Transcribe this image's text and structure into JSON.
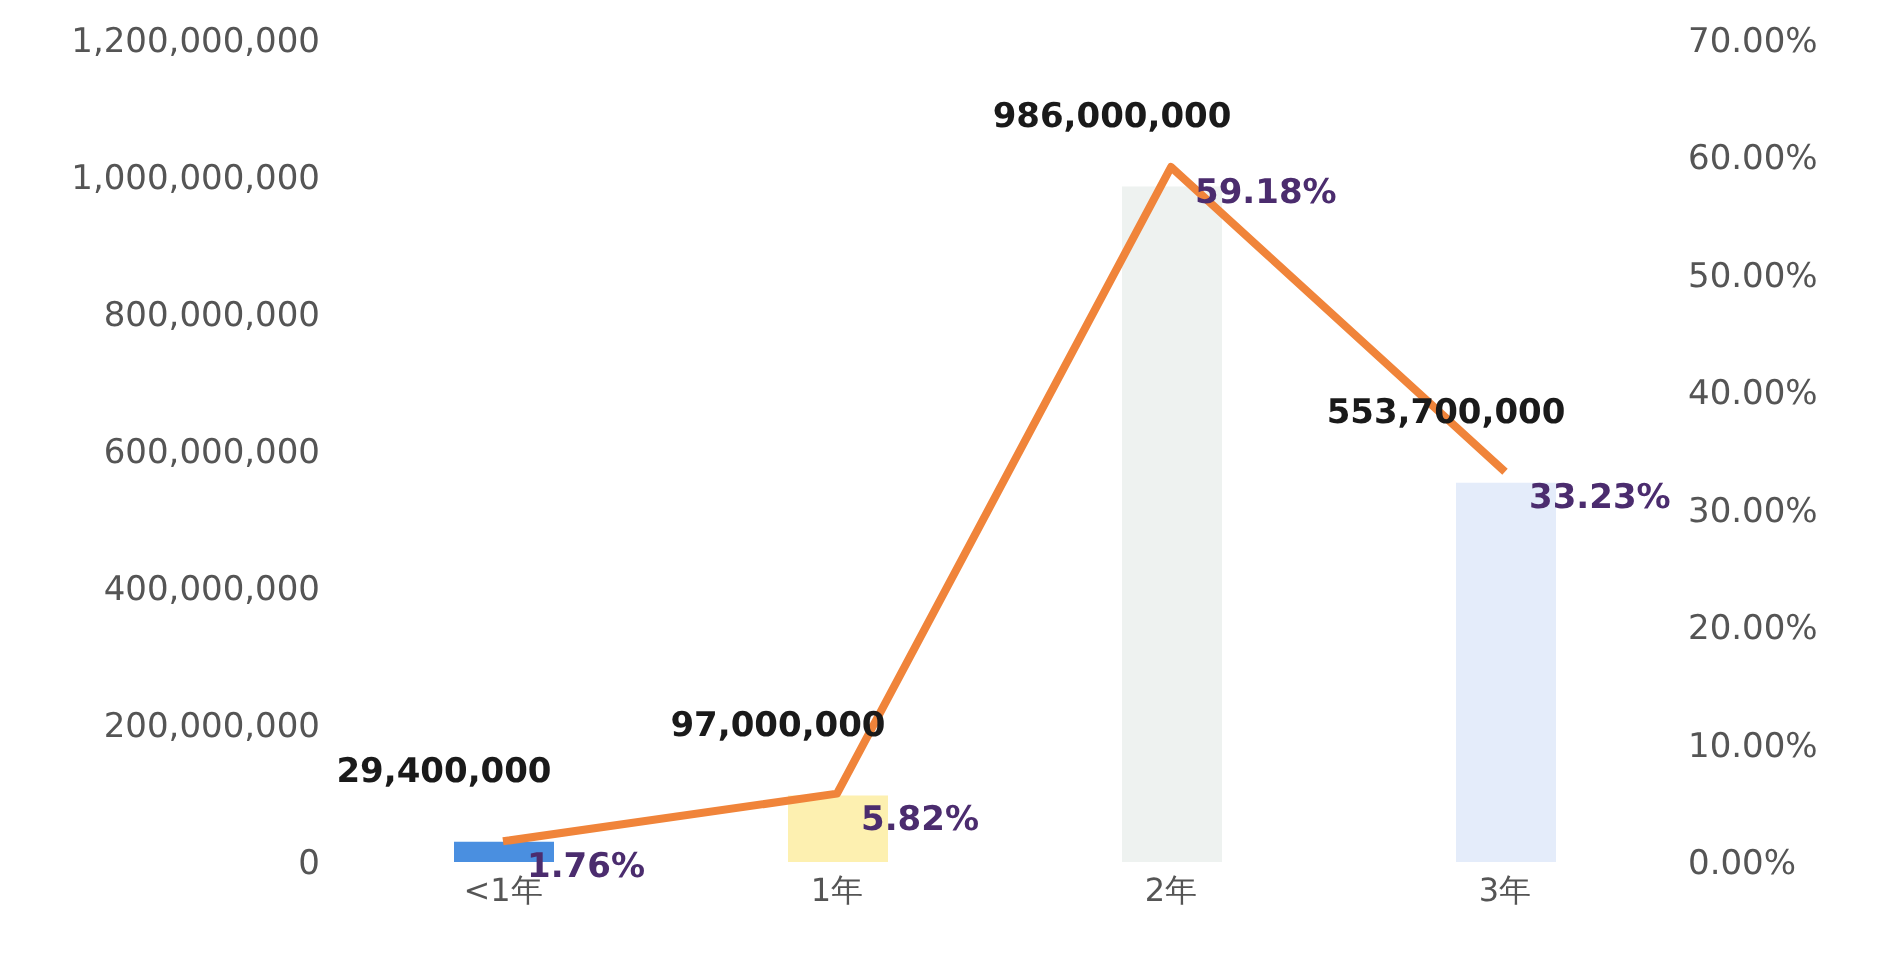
{
  "chart_data": {
    "type": "bar",
    "categories": [
      "<1年",
      "1年",
      "2年",
      "3年"
    ],
    "series": [
      {
        "colors": [
          "#4a8fe0",
          "#fdf0b0",
          "#eef2f0",
          "#e4ecfa"
        ],
        "values": [
          29400000,
          97000000,
          986000000,
          553700000
        ],
        "value_labels": [
          "29,400,000",
          "97,000,000",
          "986,000,000",
          "553,700,000"
        ]
      },
      {
        "type": "line",
        "axis": "y2",
        "color": "#f0843a",
        "values": [
          1.76,
          5.82,
          59.18,
          33.23
        ],
        "value_labels": [
          "1.76%",
          "5.82%",
          "59.18%",
          "33.23%"
        ]
      }
    ],
    "ylim": [
      0,
      1200000000
    ],
    "yticks": [
      {
        "value": 0,
        "label": "0"
      },
      {
        "value": 200000000,
        "label": "200,000,000"
      },
      {
        "value": 400000000,
        "label": "400,000,000"
      },
      {
        "value": 600000000,
        "label": "600,000,000"
      },
      {
        "value": 800000000,
        "label": "800,000,000"
      },
      {
        "value": 1000000000,
        "label": "1,000,000,000"
      },
      {
        "value": 1200000000,
        "label": "1,200,000,000"
      }
    ],
    "y2lim": [
      0,
      70
    ],
    "y2ticks": [
      {
        "value": 0,
        "label": "0.00%"
      },
      {
        "value": 10,
        "label": "10.00%"
      },
      {
        "value": 20,
        "label": "20.00%"
      },
      {
        "value": 30,
        "label": "30.00%"
      },
      {
        "value": 40,
        "label": "40.00%"
      },
      {
        "value": 50,
        "label": "50.00%"
      },
      {
        "value": 60,
        "label": "60.00%"
      },
      {
        "value": 70,
        "label": "70.00%"
      }
    ],
    "grid": false,
    "legend": false,
    "marker": "none",
    "line_style": "solid"
  }
}
